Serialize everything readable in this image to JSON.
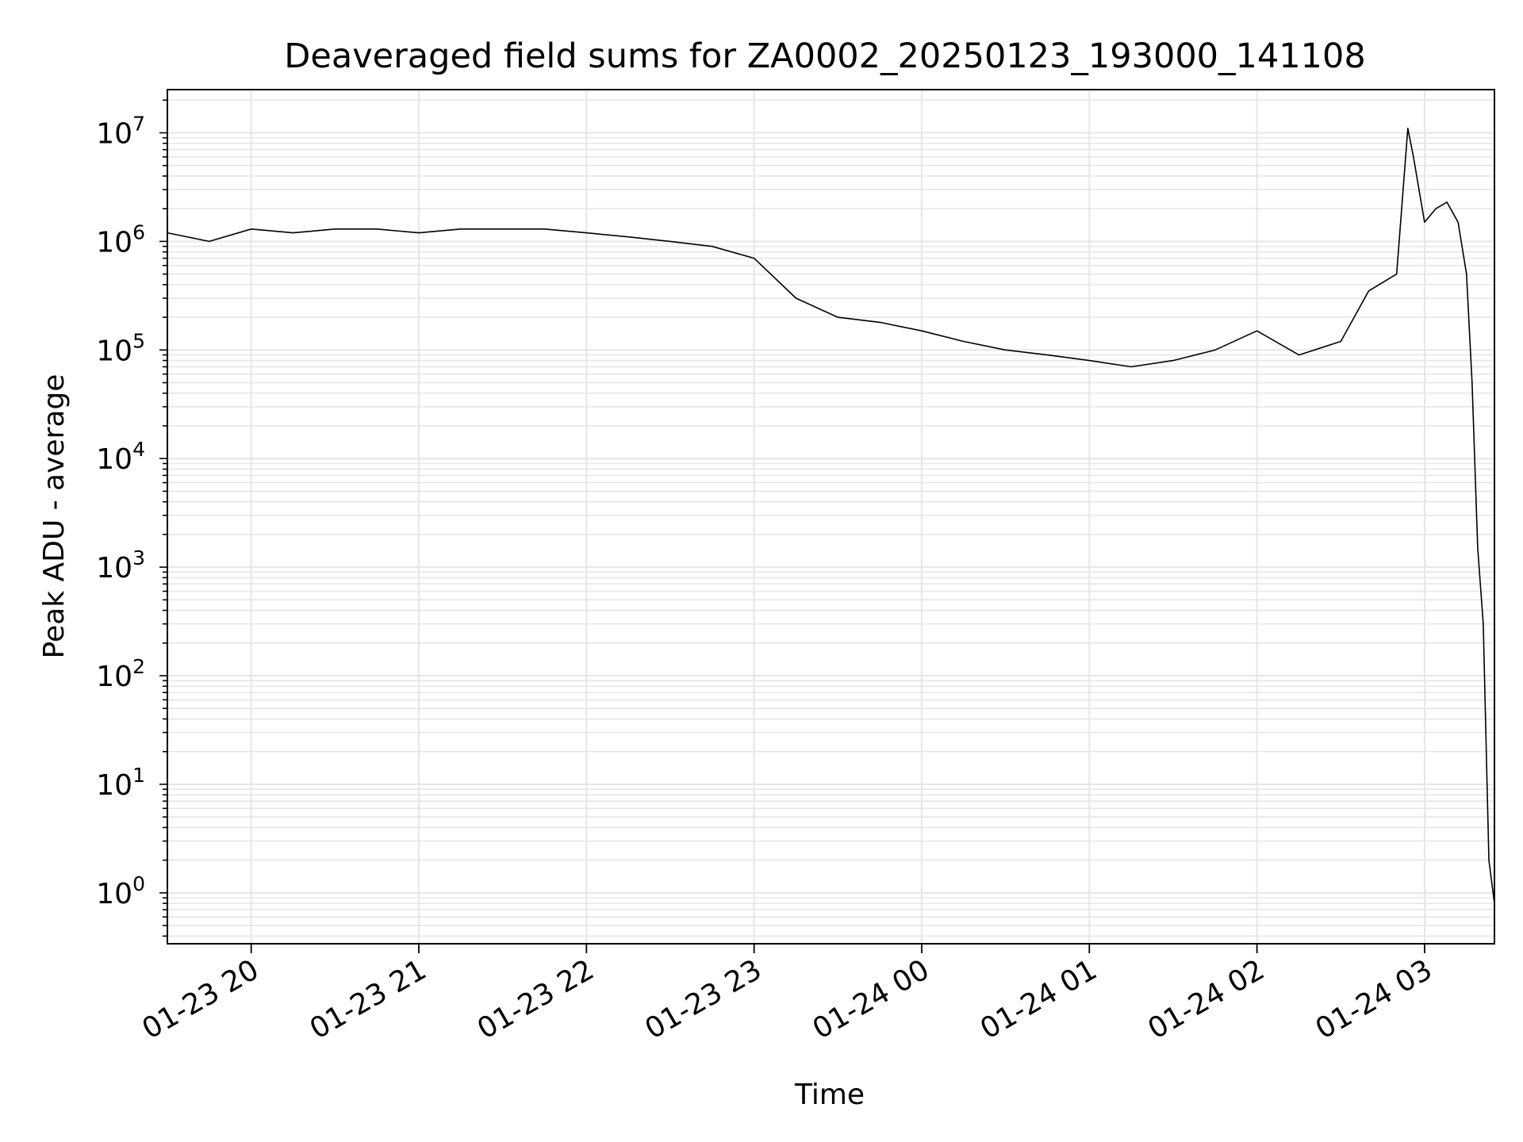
{
  "chart_data": {
    "type": "line",
    "title": "Deaveraged field sums for ZA0002_20250123_193000_141108",
    "xlabel": "Time",
    "ylabel": "Peak ADU - average",
    "yscale": "log",
    "ylim": [
      0.34,
      25000000
    ],
    "xlim": [
      "2025-01-23 19:30",
      "2025-01-24 03:25"
    ],
    "grid": true,
    "line_color": "#000000",
    "grid_color": "#e6e6e6",
    "x_tick_labels": [
      "01-23 20",
      "01-23 21",
      "01-23 22",
      "01-23 23",
      "01-24 00",
      "01-24 01",
      "01-24 02",
      "01-24 03"
    ],
    "y_tick_labels": [
      {
        "base": "10",
        "exp": "7"
      },
      {
        "base": "10",
        "exp": "6"
      },
      {
        "base": "10",
        "exp": "5"
      },
      {
        "base": "10",
        "exp": "4"
      },
      {
        "base": "10",
        "exp": "3"
      },
      {
        "base": "10",
        "exp": "2"
      },
      {
        "base": "10",
        "exp": "1"
      },
      {
        "base": "10",
        "exp": "0"
      }
    ],
    "series": [
      {
        "x": [
          "2025-01-23 19:30",
          "2025-01-23 19:45",
          "2025-01-23 20:00",
          "2025-01-23 20:15",
          "2025-01-23 20:30",
          "2025-01-23 20:45",
          "2025-01-23 21:00",
          "2025-01-23 21:15",
          "2025-01-23 21:30",
          "2025-01-23 21:45",
          "2025-01-23 22:00",
          "2025-01-23 22:15",
          "2025-01-23 22:30",
          "2025-01-23 22:45",
          "2025-01-23 23:00",
          "2025-01-23 23:15",
          "2025-01-23 23:30",
          "2025-01-23 23:45",
          "2025-01-24 00:00",
          "2025-01-24 00:15",
          "2025-01-24 00:30",
          "2025-01-24 00:45",
          "2025-01-24 01:00",
          "2025-01-24 01:15",
          "2025-01-24 01:30",
          "2025-01-24 01:45",
          "2025-01-24 02:00",
          "2025-01-24 02:15",
          "2025-01-24 02:30",
          "2025-01-24 02:40",
          "2025-01-24 02:50",
          "2025-01-24 02:54",
          "2025-01-24 02:56",
          "2025-01-24 03:00",
          "2025-01-24 03:04",
          "2025-01-24 03:08",
          "2025-01-24 03:12",
          "2025-01-24 03:15",
          "2025-01-24 03:17",
          "2025-01-24 03:19",
          "2025-01-24 03:21",
          "2025-01-24 03:23",
          "2025-01-24 03:25"
        ],
        "y": [
          1200000,
          1000000,
          1300000,
          1200000,
          1300000,
          1300000,
          1200000,
          1300000,
          1300000,
          1300000,
          1200000,
          1100000,
          1000000,
          900000,
          700000,
          300000,
          200000,
          180000,
          150000,
          120000,
          100000,
          90000,
          80000,
          70000,
          80000,
          100000,
          150000,
          90000,
          120000,
          350000,
          500000,
          11000000,
          6000000,
          1500000,
          2000000,
          2300000,
          1500000,
          500000,
          50000,
          1500,
          300,
          2,
          0.8
        ]
      }
    ]
  }
}
